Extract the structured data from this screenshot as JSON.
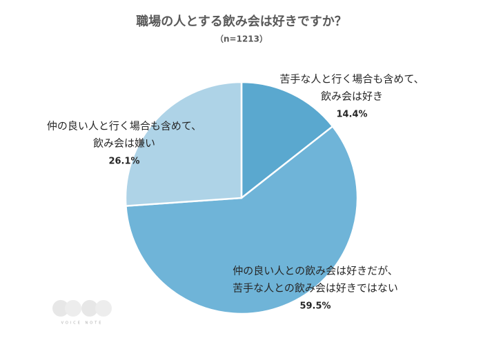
{
  "chart_data": {
    "type": "pie",
    "title": "職場の人とする飲み会は好きですか？",
    "subtitle": "（n=1213）",
    "categories": [
      [
        "苦手な人と行く場合も含めて、",
        "飲み会は好き"
      ],
      [
        "仲の良い人との飲み会は好きだが、",
        "苦手な人との飲み会は好きではない"
      ],
      [
        "仲の良い人と行く場合も含めて、",
        "飲み会は嫌い"
      ]
    ],
    "values": [
      14.4,
      59.5,
      26.1
    ],
    "value_labels": [
      "14.4%",
      "59.5%",
      "26.1%"
    ],
    "colors": [
      "#5aa8cf",
      "#6fb4d8",
      "#aed3e7"
    ],
    "watermark": "VOICE NOTE"
  }
}
